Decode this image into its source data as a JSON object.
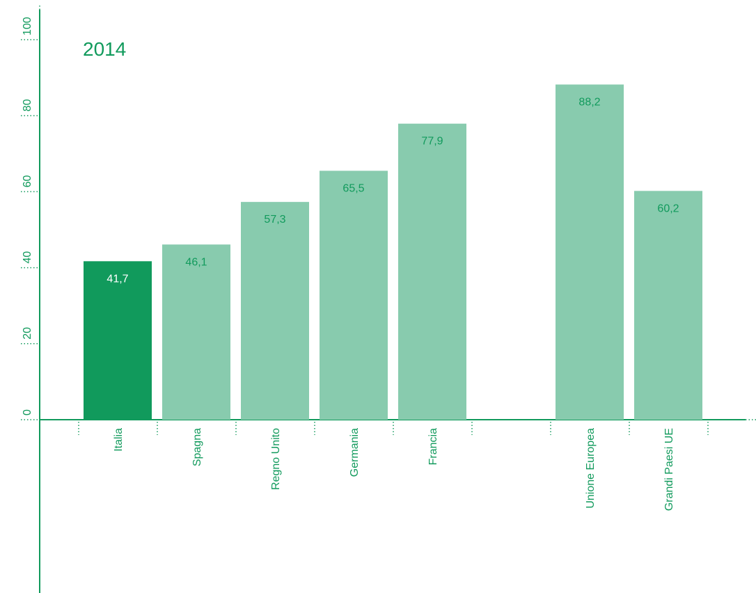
{
  "chart_data": {
    "type": "bar",
    "title": "2014",
    "xlabel": "",
    "ylabel": "",
    "ylim": [
      0,
      100
    ],
    "yticks": [
      "0",
      "20",
      "40",
      "60",
      "80",
      "100"
    ],
    "grid": false,
    "categories": [
      "Italia",
      "Spagna",
      "Regno Unito",
      "Germania",
      "Francia",
      "Unione Europea",
      "Grandi Paesi UE"
    ],
    "values": [
      41.7,
      46.1,
      57.3,
      65.5,
      77.9,
      88.2,
      60.2
    ],
    "value_labels": [
      "41,7",
      "46,1",
      "57,3",
      "65,5",
      "77,9",
      "88,2",
      "60,2"
    ],
    "highlight_index": 0
  },
  "colors": {
    "accent": "#119a5c",
    "bar": "#88cbae",
    "bar_highlight": "#119a5c",
    "value_text_on_highlight": "#ffffff",
    "value_text": "#119a5c"
  }
}
